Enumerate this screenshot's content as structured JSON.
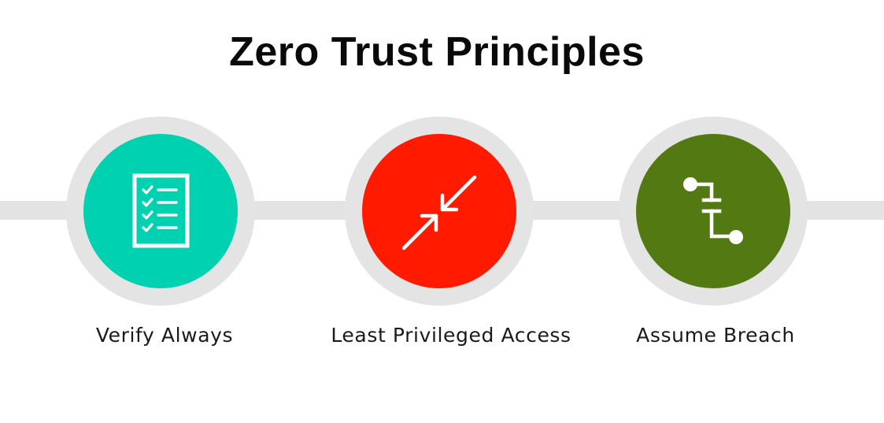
{
  "title": "Zero Trust Principles",
  "principles": [
    {
      "label": "Verify Always",
      "icon": "checklist-icon",
      "color": "#00d1b0"
    },
    {
      "label": "Least Privileged Access",
      "icon": "compress-arrows-icon",
      "color": "#ff1a00"
    },
    {
      "label": "Assume Breach",
      "icon": "broken-connection-icon",
      "color": "#537a12"
    }
  ],
  "colors": {
    "ring": "#e4e4e4",
    "connector": "#e3e3e3",
    "icon": "#ffffff",
    "text": "#1a1a1a"
  }
}
